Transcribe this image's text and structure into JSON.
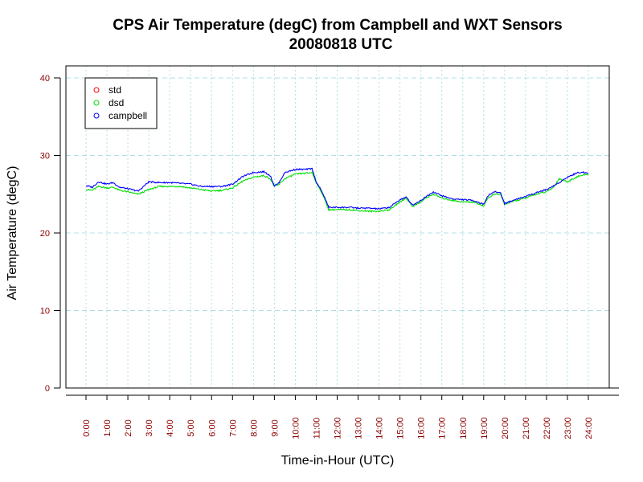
{
  "chart_data": {
    "type": "line",
    "title": "CPS Air Temperature (degC) from Campbell and WXT Sensors",
    "subtitle": "20080818  UTC",
    "xlabel": "Time-in-Hour (UTC)",
    "ylabel": "Air Temperature (degC)",
    "xlim": [
      0,
      24
    ],
    "ylim": [
      0,
      40
    ],
    "grid": true,
    "legend_position": "top-left",
    "x_ticks": [
      0,
      1,
      2,
      3,
      4,
      5,
      6,
      7,
      8,
      9,
      10,
      11,
      12,
      13,
      14,
      15,
      16,
      17,
      18,
      19,
      20,
      21,
      22,
      23,
      24
    ],
    "x_tick_labels": [
      "0:00",
      "1:00",
      "2:00",
      "3:00",
      "4:00",
      "5:00",
      "6:00",
      "7:00",
      "8:00",
      "9:00",
      "10:00",
      "11:00",
      "12:00",
      "13:00",
      "14:00",
      "15:00",
      "16:00",
      "17:00",
      "18:00",
      "19:00",
      "20:00",
      "21:00",
      "22:00",
      "23:00",
      "24:00"
    ],
    "y_ticks": [
      0,
      10,
      20,
      30,
      40
    ],
    "y_tick_labels": [
      "0",
      "10",
      "20",
      "30",
      "40"
    ],
    "colors": {
      "tick_label": "#8b0000",
      "grid": "#b0e0e6",
      "axis": "#000000"
    },
    "series": [
      {
        "name": "std",
        "color": "#ff0000",
        "x": [],
        "values": []
      },
      {
        "name": "dsd",
        "color": "#00dd00",
        "x": [
          0,
          0.3,
          0.6,
          1.0,
          1.3,
          1.6,
          2.0,
          2.5,
          3.0,
          3.5,
          4.0,
          4.5,
          5.0,
          5.5,
          6.0,
          6.5,
          7.0,
          7.5,
          8.0,
          8.5,
          8.8,
          9.0,
          9.2,
          9.5,
          10.0,
          10.5,
          10.8,
          11.0,
          11.3,
          11.6,
          11.9,
          12.2,
          12.6,
          13.0,
          13.5,
          14.0,
          14.5,
          15.0,
          15.3,
          15.6,
          16.0,
          16.3,
          16.6,
          17.0,
          17.5,
          18.0,
          18.5,
          19.0,
          19.2,
          19.5,
          19.8,
          20.0,
          20.3,
          20.6,
          21.0,
          21.5,
          22.0,
          22.3,
          22.6,
          23.0,
          23.5,
          24.0
        ],
        "values": [
          25.6,
          25.5,
          26.0,
          25.8,
          25.9,
          25.5,
          25.3,
          25.0,
          25.6,
          26.0,
          26.0,
          26.0,
          25.8,
          25.6,
          25.4,
          25.5,
          25.8,
          26.7,
          27.2,
          27.4,
          27.0,
          26.0,
          26.2,
          27.0,
          27.6,
          27.7,
          27.8,
          26.5,
          25.0,
          23.0,
          23.0,
          23.0,
          23.0,
          22.9,
          22.8,
          22.8,
          23.0,
          24.0,
          24.5,
          23.4,
          24.0,
          24.6,
          25.0,
          24.5,
          24.2,
          24.0,
          24.0,
          23.5,
          24.5,
          25.0,
          25.0,
          23.7,
          24.0,
          24.2,
          24.5,
          25.0,
          25.3,
          25.8,
          27.0,
          26.6,
          27.3,
          27.6
        ]
      },
      {
        "name": "campbell",
        "color": "#0000ff",
        "x": [
          0,
          0.3,
          0.6,
          1.0,
          1.3,
          1.6,
          2.0,
          2.5,
          3.0,
          3.5,
          4.0,
          4.5,
          5.0,
          5.5,
          6.0,
          6.5,
          7.0,
          7.5,
          8.0,
          8.5,
          8.8,
          9.0,
          9.2,
          9.5,
          10.0,
          10.5,
          10.8,
          11.0,
          11.3,
          11.6,
          11.9,
          12.2,
          12.6,
          13.0,
          13.5,
          14.0,
          14.5,
          15.0,
          15.3,
          15.6,
          16.0,
          16.3,
          16.6,
          17.0,
          17.5,
          18.0,
          18.5,
          19.0,
          19.2,
          19.5,
          19.8,
          20.0,
          20.3,
          20.6,
          21.0,
          21.5,
          22.0,
          22.3,
          22.6,
          23.0,
          23.5,
          24.0
        ],
        "values": [
          26.1,
          25.9,
          26.6,
          26.3,
          26.5,
          25.9,
          25.7,
          25.4,
          26.6,
          26.5,
          26.5,
          26.4,
          26.3,
          26.0,
          26.0,
          26.0,
          26.3,
          27.3,
          27.8,
          27.9,
          27.4,
          26.1,
          26.4,
          27.8,
          28.2,
          28.2,
          28.3,
          26.6,
          25.2,
          23.3,
          23.3,
          23.3,
          23.3,
          23.2,
          23.2,
          23.1,
          23.3,
          24.3,
          24.6,
          23.6,
          24.2,
          24.8,
          25.3,
          24.8,
          24.4,
          24.3,
          24.2,
          23.7,
          24.8,
          25.3,
          25.2,
          23.8,
          24.1,
          24.4,
          24.7,
          25.2,
          25.6,
          26.0,
          26.5,
          27.2,
          27.8,
          27.8
        ]
      }
    ]
  }
}
